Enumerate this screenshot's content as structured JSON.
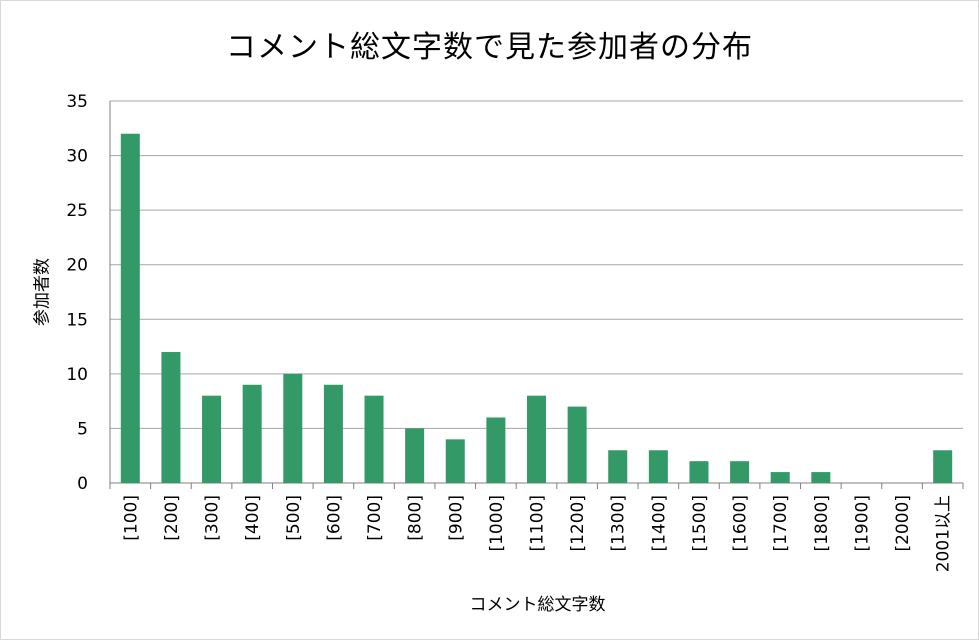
{
  "chart_data": {
    "type": "bar",
    "title": "コメント総文字数で見た参加者の分布",
    "xlabel": "コメント総文字数",
    "ylabel": "参加者数",
    "categories": [
      "[100]",
      "[200]",
      "[300]",
      "[400]",
      "[500]",
      "[600]",
      "[700]",
      "[800]",
      "[900]",
      "[1000]",
      "[1100]",
      "[1200]",
      "[1300]",
      "[1400]",
      "[1500]",
      "[1600]",
      "[1700]",
      "[1800]",
      "[1900]",
      "[2000]",
      "2001以上"
    ],
    "values": [
      32,
      12,
      8,
      9,
      10,
      9,
      8,
      5,
      4,
      6,
      8,
      7,
      3,
      3,
      2,
      2,
      1,
      1,
      0,
      0,
      3
    ],
    "ylim": [
      0,
      35
    ],
    "yticks": [
      0,
      5,
      10,
      15,
      20,
      25,
      30,
      35
    ],
    "grid": true,
    "legend": "none",
    "bar_color": "#339966",
    "grid_color": "#a6a6a6"
  }
}
